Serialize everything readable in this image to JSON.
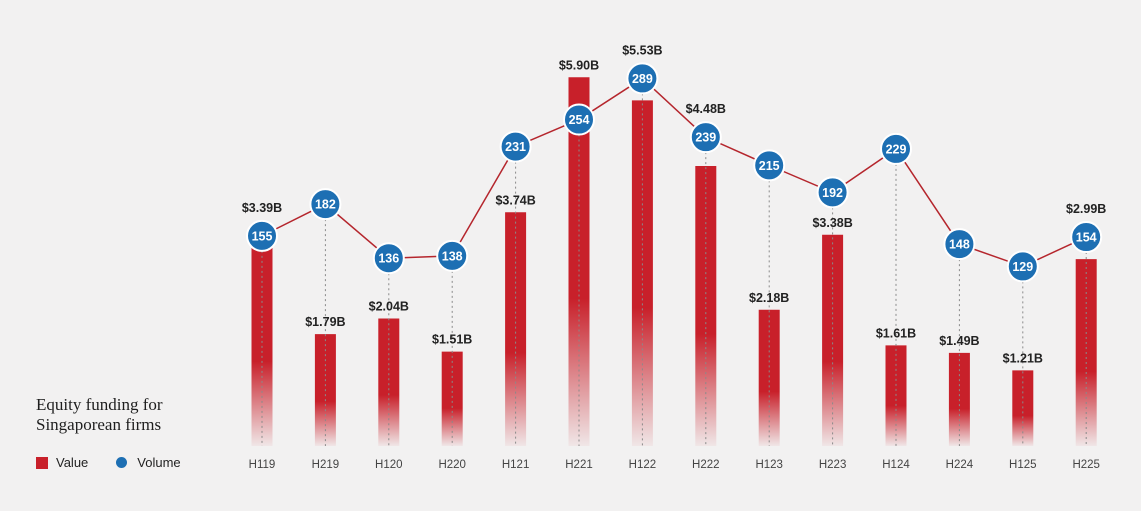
{
  "chart_data": {
    "type": "bar",
    "title": "Equity funding for Singaporean firms",
    "categories": [
      "H119",
      "H219",
      "H120",
      "H220",
      "H121",
      "H221",
      "H122",
      "H222",
      "H123",
      "H223",
      "H124",
      "H224",
      "H125",
      "H225"
    ],
    "series": [
      {
        "name": "Value",
        "type": "bar",
        "values": [
          3.39,
          1.79,
          2.04,
          1.51,
          3.74,
          5.9,
          5.53,
          4.48,
          2.18,
          3.38,
          1.61,
          1.49,
          1.21,
          2.99
        ],
        "labels": [
          "$3.39B",
          "$1.79B",
          "$2.04B",
          "$1.51B",
          "$3.74B",
          "$5.90B",
          "$5.53B",
          "$4.48B",
          "$2.18B",
          "$3.38B",
          "$1.61B",
          "$1.49B",
          "$1.21B",
          "$2.99B"
        ]
      },
      {
        "name": "Volume",
        "type": "line",
        "values": [
          155,
          182,
          136,
          138,
          231,
          254,
          289,
          239,
          215,
          192,
          229,
          148,
          129,
          154
        ]
      }
    ],
    "xlabel": "",
    "ylabel": "",
    "legend": [
      "Value",
      "Volume"
    ],
    "legend_position": "bottom-left"
  },
  "colors": {
    "value": "#c8202a",
    "volume": "#1d6fb3",
    "line": "#b5262d"
  },
  "title_lines": [
    "Equity funding for",
    "Singaporean firms"
  ],
  "legend": {
    "value_label": "Value",
    "volume_label": "Volume"
  }
}
